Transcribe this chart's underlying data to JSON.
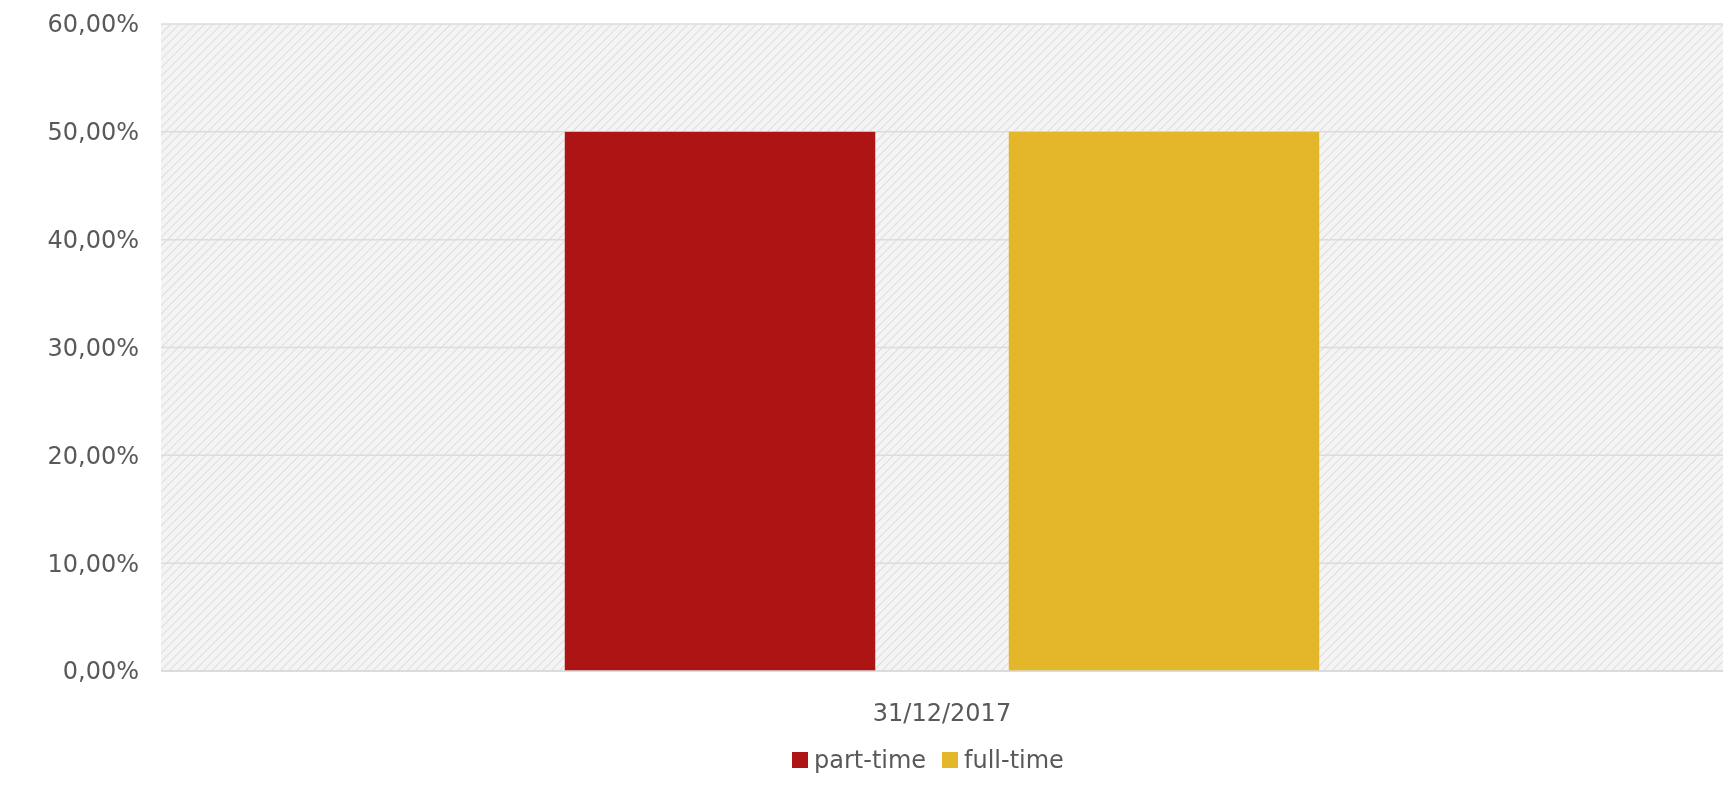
{
  "chart_data": {
    "type": "bar",
    "categories": [
      "31/12/2017"
    ],
    "series": [
      {
        "name": "part-time",
        "color": "#ac1514",
        "values": [
          50
        ]
      },
      {
        "name": "full-time",
        "color": "#e4b72a",
        "values": [
          50
        ]
      }
    ],
    "ylim": [
      0,
      60
    ],
    "yticks": [
      {
        "value": 0,
        "label": "0,00%"
      },
      {
        "value": 10,
        "label": "10,00%"
      },
      {
        "value": 20,
        "label": "20,00%"
      },
      {
        "value": 30,
        "label": "30,00%"
      },
      {
        "value": 40,
        "label": "40,00%"
      },
      {
        "value": 50,
        "label": "50,00%"
      },
      {
        "value": 60,
        "label": "60,00%"
      }
    ],
    "grid": "y",
    "legend": "bottom"
  }
}
